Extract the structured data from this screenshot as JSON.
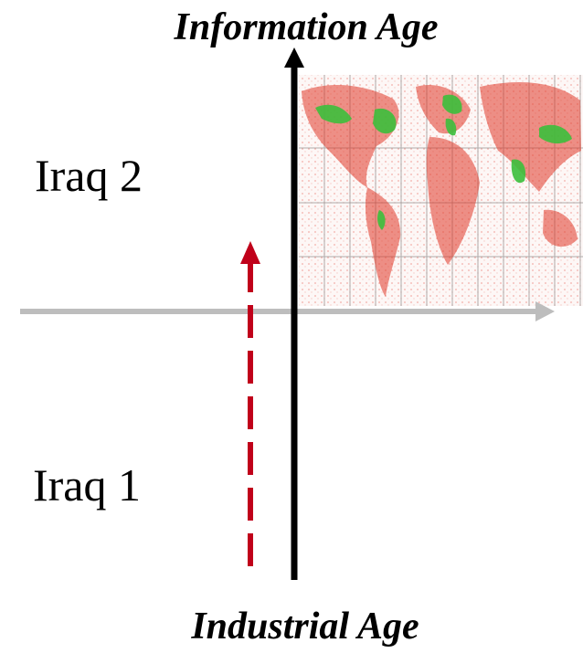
{
  "labels": {
    "top": "Information Age",
    "bottom": "Industrial Age",
    "upper_left": "Iraq 2",
    "lower_left": "Iraq 1"
  },
  "colors": {
    "vertical_axis": "#000000",
    "horizontal_axis": "#bdbdbd",
    "transition_arrow": "#c0001a",
    "map_land": "#3cbf3c",
    "map_traffic": "#e03a2a",
    "map_grid": "#7a7a7a"
  },
  "icons": {
    "map": "world-internet-map-image"
  }
}
